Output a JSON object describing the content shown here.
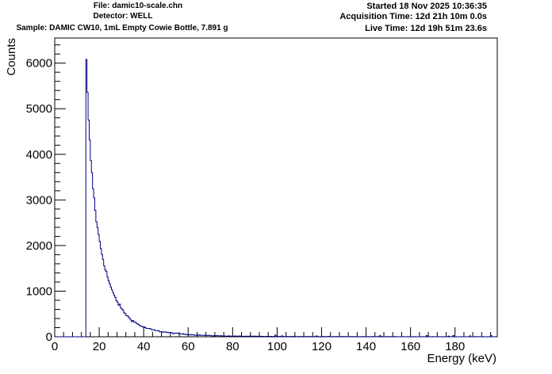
{
  "header": {
    "file": "File: damic10-scale.chn",
    "detector": "Detector: WELL",
    "sample": "Sample: DAMIC CW10, 1mL Empty Cowie Bottle, 7.891 g",
    "started": "Started 18 Nov 2025 10:36:35",
    "acquisition": "Acquisition Time: 12d 21h 10m 0.0s",
    "live": "Live Time: 12d 19h 51m 23.6s"
  },
  "chart_data": {
    "type": "histogram",
    "title": "",
    "xlabel": "Energy (keV)",
    "ylabel": "Counts",
    "xlim": [
      0,
      199
    ],
    "ylim": [
      0,
      6550
    ],
    "x_ticks": [
      "0",
      "20",
      "40",
      "60",
      "80",
      "100",
      "120",
      "140",
      "160",
      "180"
    ],
    "y_ticks": [
      "0",
      "1000",
      "2000",
      "3000",
      "4000",
      "5000",
      "6000"
    ],
    "x_tick_values": [
      0,
      20,
      40,
      60,
      80,
      100,
      120,
      140,
      160,
      180
    ],
    "y_tick_values": [
      0,
      1000,
      2000,
      3000,
      4000,
      5000,
      6000
    ],
    "bin_width": 0.5,
    "threshold_keV": 14,
    "peak_counts": 6080,
    "line_color": "#000080",
    "series": [
      {
        "name": "spectrum",
        "envelope_keV": [
          14,
          14.5,
          15,
          15.5,
          16,
          17,
          18,
          19,
          20,
          21,
          22,
          23,
          24,
          25,
          26,
          28,
          30,
          32,
          34,
          36,
          38,
          40,
          45,
          50,
          55,
          60,
          65,
          70,
          80,
          90,
          100,
          120,
          140,
          160,
          180,
          199
        ],
        "envelope_counts": [
          6080,
          5700,
          4950,
          4500,
          4050,
          3400,
          2900,
          2450,
          2150,
          1880,
          1650,
          1450,
          1270,
          1120,
          980,
          780,
          620,
          490,
          390,
          320,
          260,
          210,
          140,
          100,
          70,
          50,
          35,
          25,
          14,
          10,
          7,
          4,
          3,
          2,
          1,
          1
        ]
      }
    ]
  }
}
